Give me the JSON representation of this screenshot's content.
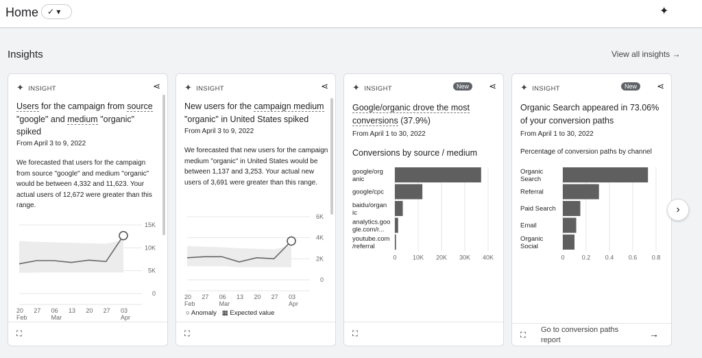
{
  "header": {
    "title": "Home",
    "status_icon": "check-circle-icon",
    "assistant_icon": "sparkle-icon"
  },
  "section": {
    "title": "Insights",
    "view_all": "View all insights →"
  },
  "cards": [
    {
      "label": "INSIGHT",
      "title_parts": [
        "Users",
        "for the campaign from",
        "source",
        "\"google\" and",
        "medium",
        "\"organic\" spiked"
      ],
      "date": "From April 3 to 9, 2022",
      "desc": "We forecasted that users for the campaign from source \"google\" and medium \"organic\" would be between 4,332 and 11,623. Your actual users of 12,672 were greater than this range."
    },
    {
      "label": "INSIGHT",
      "title_parts": [
        "New users for the",
        "campaign medium",
        "\"organic\" in United States spiked"
      ],
      "date": "From April 3 to 9, 2022",
      "desc": "We forecasted that new users for the campaign medium \"organic\" in United States would be between 1,137 and 3,253. Your actual new users of 3,691 were greater than this range.",
      "legend": {
        "anomaly": "Anomaly",
        "expected": "Expected value"
      }
    },
    {
      "label": "INSIGHT",
      "badge": "New",
      "title_parts": [
        "Google/organic drove the most conversions",
        "(37.9%)"
      ],
      "date": "From April 1 to 30, 2022",
      "chart_title": "Conversions by source / medium"
    },
    {
      "label": "INSIGHT",
      "badge": "New",
      "title": "Organic Search appeared in 73.06% of your conversion paths",
      "date": "From April 1 to 30, 2022",
      "chart_title": "Percentage of conversion paths by channel",
      "footer_link": "Go to conversion paths report"
    }
  ],
  "chart_data": [
    {
      "type": "line",
      "x": [
        "20 Feb",
        "27 Feb",
        "06 Mar",
        "13 Mar",
        "20 Mar",
        "27 Mar",
        "03 Apr"
      ],
      "xticks": [
        [
          "20",
          "Feb"
        ],
        [
          "27",
          ""
        ],
        [
          "06",
          "Mar"
        ],
        [
          "13",
          ""
        ],
        [
          "20",
          ""
        ],
        [
          "27",
          ""
        ],
        [
          "03",
          "Apr"
        ]
      ],
      "values": [
        6500,
        7200,
        7200,
        6800,
        7300,
        7000,
        12672
      ],
      "band_low": [
        4500,
        4600,
        4600,
        4600,
        4600,
        4600,
        4600
      ],
      "band_high": [
        11500,
        11300,
        11200,
        11100,
        11000,
        10900,
        11700
      ],
      "yticks": [
        "0",
        "5K",
        "10K",
        "15K"
      ],
      "ylim": [
        0,
        15000
      ],
      "anomaly_index": 6
    },
    {
      "type": "line",
      "x": [
        "20 Feb",
        "27 Feb",
        "06 Mar",
        "13 Mar",
        "20 Mar",
        "27 Mar",
        "03 Apr"
      ],
      "xticks": [
        [
          "20",
          "Feb"
        ],
        [
          "27",
          ""
        ],
        [
          "06",
          "Mar"
        ],
        [
          "13",
          ""
        ],
        [
          "20",
          ""
        ],
        [
          "27",
          ""
        ],
        [
          "03",
          "Apr"
        ]
      ],
      "values": [
        2100,
        2200,
        2200,
        1700,
        2100,
        2000,
        3691
      ],
      "band_low": [
        1300,
        1300,
        1300,
        1200,
        1200,
        1200,
        1200
      ],
      "band_high": [
        3200,
        3150,
        3100,
        3000,
        2950,
        2900,
        3250
      ],
      "yticks": [
        "0",
        "2K",
        "4K",
        "6K"
      ],
      "ylim": [
        0,
        6000
      ],
      "anomaly_index": 6
    },
    {
      "type": "bar",
      "orientation": "horizontal",
      "categories": [
        [
          "google/org",
          "anic"
        ],
        [
          "google/cpc"
        ],
        [
          "baidu/organ",
          "ic"
        ],
        [
          "analytics.goo",
          "gle.com/r..."
        ],
        [
          "youtube.com",
          "/referral"
        ]
      ],
      "values": [
        37000,
        11800,
        3400,
        1400,
        500
      ],
      "xticks": [
        "0",
        "10K",
        "20K",
        "30K",
        "40K"
      ],
      "xlim": [
        0,
        40000
      ]
    },
    {
      "type": "bar",
      "orientation": "horizontal",
      "categories": [
        [
          "Organic",
          "Search"
        ],
        [
          "Referral"
        ],
        [
          "Paid Search"
        ],
        [
          "Email"
        ],
        [
          "Organic",
          "Social"
        ]
      ],
      "values": [
        0.7306,
        0.31,
        0.15,
        0.115,
        0.1
      ],
      "xticks": [
        "0",
        "0.2",
        "0.4",
        "0.6",
        "0.8"
      ],
      "xlim": [
        0,
        0.8
      ]
    }
  ],
  "colors": {
    "bar": "#5f5f5f",
    "band": "#ececec",
    "line": "#666666"
  }
}
